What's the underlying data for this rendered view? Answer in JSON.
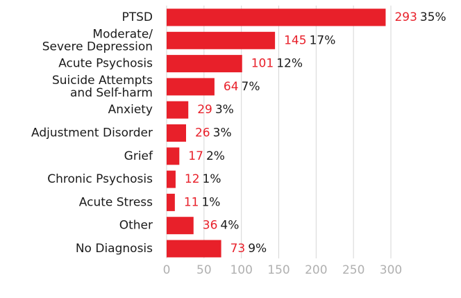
{
  "chart_data": {
    "type": "hbar",
    "categories": [
      "PTSD",
      "Moderate/\nSevere Depression",
      "Acute Psychosis",
      "Suicide Attempts\nand Self-harm",
      "Anxiety",
      "Adjustment Disorder",
      "Grief",
      "Chronic Psychosis",
      "Acute Stress",
      "Other",
      "No Diagnosis"
    ],
    "values": [
      293,
      145,
      101,
      64,
      29,
      26,
      17,
      12,
      11,
      36,
      73
    ],
    "percent_labels": [
      "35%",
      "17%",
      "12%",
      "7%",
      "3%",
      "3%",
      "2%",
      "1%",
      "1%",
      "4%",
      "9%"
    ],
    "color": "#e8202a",
    "xlim": [
      0,
      300
    ],
    "xticks": [
      0,
      50,
      100,
      150,
      200,
      250,
      300
    ],
    "grid": true
  }
}
